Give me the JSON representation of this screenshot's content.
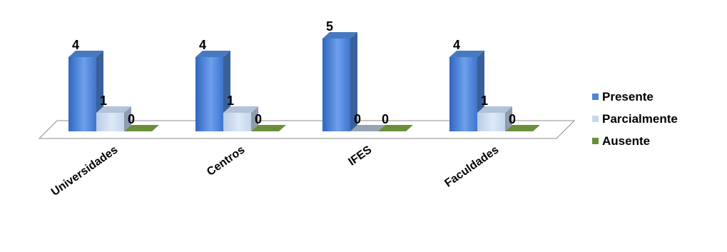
{
  "chart_data": {
    "type": "bar",
    "categories": [
      "Universidades",
      "Centros",
      "IFES",
      "Faculdades"
    ],
    "series": [
      {
        "name": "Presente",
        "values": [
          4,
          4,
          5,
          4
        ],
        "color": "#4f86d6"
      },
      {
        "name": "Parcialmente",
        "values": [
          1,
          1,
          0,
          1
        ],
        "color": "#c6d9f1"
      },
      {
        "name": "Ausente",
        "values": [
          0,
          0,
          0,
          0
        ],
        "color": "#6a8f3a"
      }
    ],
    "data_labels": true,
    "legend_position": "right",
    "grid": false,
    "three_d": true
  }
}
